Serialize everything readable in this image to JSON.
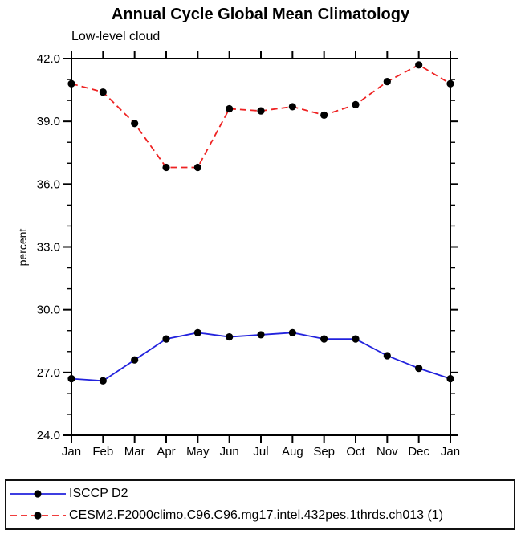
{
  "chart_data": {
    "type": "line",
    "title": "Annual Cycle Global Mean Climatology",
    "subtitle": "Low-level cloud",
    "ylabel": "percent",
    "xlabel": "",
    "categories": [
      "Jan",
      "Feb",
      "Mar",
      "Apr",
      "May",
      "Jun",
      "Jul",
      "Aug",
      "Sep",
      "Oct",
      "Nov",
      "Dec",
      "Jan"
    ],
    "axes": {
      "ylim": [
        24.0,
        42.0
      ],
      "y_major_step": 3.0,
      "y_minor_step": 1.0,
      "y_tick_labels": [
        "24.0",
        "27.0",
        "30.0",
        "33.0",
        "36.0",
        "39.0",
        "42.0"
      ],
      "grid": "off",
      "frame": "box",
      "tick_direction": "out",
      "color": "#000000"
    },
    "legend": {
      "position": "bottom-left-box"
    },
    "series": [
      {
        "name": "ISCCP D2",
        "color": "#2222dd",
        "line_style": "solid",
        "marker": "circle",
        "marker_color": "#000000",
        "values": [
          26.7,
          26.6,
          27.6,
          28.6,
          28.9,
          28.7,
          28.8,
          28.9,
          28.6,
          28.6,
          27.8,
          27.2,
          26.7
        ]
      },
      {
        "name": "CESM2.F2000climo.C96.C96.mg17.intel.432pes.1thrds.ch013 (1)",
        "color": "#ee2222",
        "line_style": "dashed",
        "marker": "circle",
        "marker_color": "#000000",
        "values": [
          40.8,
          40.4,
          38.9,
          36.8,
          36.8,
          39.6,
          39.5,
          39.7,
          39.3,
          39.8,
          40.9,
          41.7,
          40.8
        ]
      }
    ]
  }
}
